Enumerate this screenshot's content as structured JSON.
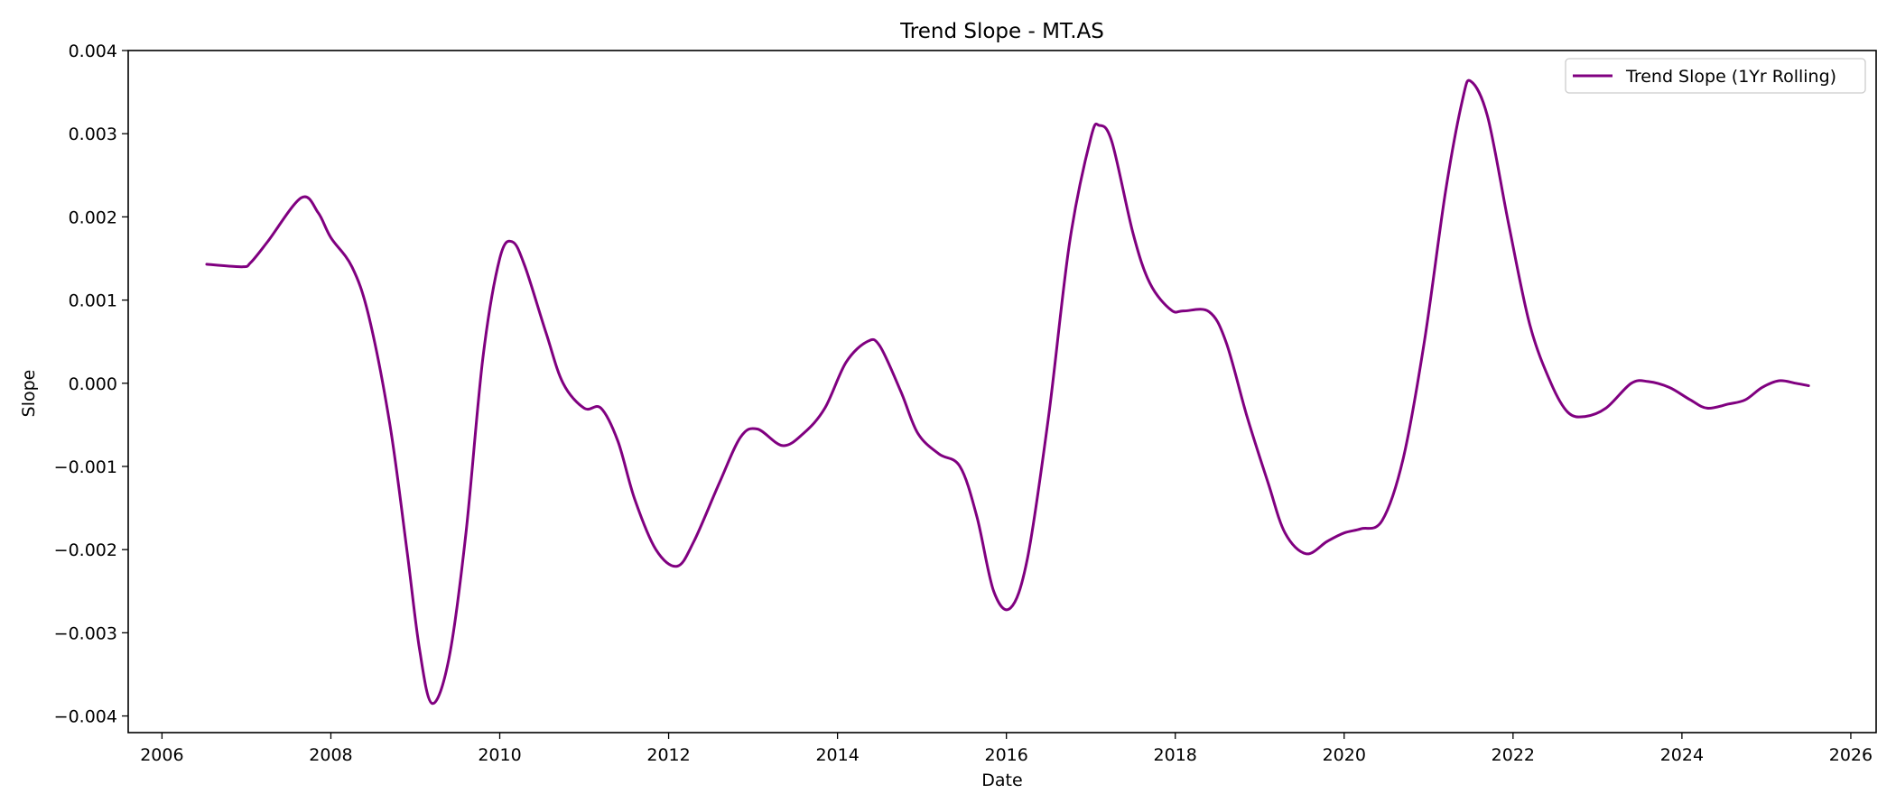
{
  "chart_data": {
    "type": "line",
    "title": "Trend Slope - MT.AS",
    "xlabel": "Date",
    "ylabel": "Slope",
    "xlim": [
      2005.6,
      2026.3
    ],
    "ylim": [
      -0.0042,
      0.004
    ],
    "x_ticks": [
      2006,
      2008,
      2010,
      2012,
      2014,
      2016,
      2018,
      2020,
      2022,
      2024,
      2026
    ],
    "x_tick_labels": [
      "2006",
      "2008",
      "2010",
      "2012",
      "2014",
      "2016",
      "2018",
      "2020",
      "2022",
      "2024",
      "2026"
    ],
    "y_ticks": [
      0.004,
      0.003,
      0.002,
      0.001,
      0.0,
      -0.001,
      -0.002,
      -0.003,
      -0.004
    ],
    "y_tick_labels": [
      "0.004",
      "0.003",
      "0.002",
      "0.001",
      "0.000",
      "−0.001",
      "−0.002",
      "−0.003",
      "−0.004"
    ],
    "grid": false,
    "legend_position": "top-right",
    "series": [
      {
        "name": "Trend Slope (1Yr Rolling)",
        "color": "#800080",
        "points": [
          [
            2006.53,
            0.00143
          ],
          [
            2006.95,
            0.0014
          ],
          [
            2007.05,
            0.00145
          ],
          [
            2007.25,
            0.0017
          ],
          [
            2007.65,
            0.00223
          ],
          [
            2007.85,
            0.00205
          ],
          [
            2008.0,
            0.00175
          ],
          [
            2008.25,
            0.0014
          ],
          [
            2008.45,
            0.0008
          ],
          [
            2008.7,
            -0.0005
          ],
          [
            2008.9,
            -0.002
          ],
          [
            2009.05,
            -0.0032
          ],
          [
            2009.2,
            -0.00385
          ],
          [
            2009.4,
            -0.0033
          ],
          [
            2009.6,
            -0.0018
          ],
          [
            2009.8,
            0.0003
          ],
          [
            2010.0,
            0.0015
          ],
          [
            2010.15,
            0.0017
          ],
          [
            2010.3,
            0.0014
          ],
          [
            2010.55,
            0.0006
          ],
          [
            2010.75,
            0.0
          ],
          [
            2011.0,
            -0.0003
          ],
          [
            2011.2,
            -0.0003
          ],
          [
            2011.4,
            -0.0007
          ],
          [
            2011.6,
            -0.0014
          ],
          [
            2011.85,
            -0.002
          ],
          [
            2012.1,
            -0.0022
          ],
          [
            2012.3,
            -0.0019
          ],
          [
            2012.6,
            -0.0012
          ],
          [
            2012.85,
            -0.00065
          ],
          [
            2013.05,
            -0.00055
          ],
          [
            2013.35,
            -0.00075
          ],
          [
            2013.6,
            -0.0006
          ],
          [
            2013.85,
            -0.0003
          ],
          [
            2014.1,
            0.00025
          ],
          [
            2014.35,
            0.0005
          ],
          [
            2014.5,
            0.00045
          ],
          [
            2014.75,
            -0.0001
          ],
          [
            2014.95,
            -0.0006
          ],
          [
            2015.2,
            -0.00085
          ],
          [
            2015.45,
            -0.001
          ],
          [
            2015.65,
            -0.0016
          ],
          [
            2015.85,
            -0.0025
          ],
          [
            2016.05,
            -0.0027
          ],
          [
            2016.25,
            -0.0021
          ],
          [
            2016.5,
            -0.0004
          ],
          [
            2016.75,
            0.0017
          ],
          [
            2017.0,
            0.00295
          ],
          [
            2017.1,
            0.0031
          ],
          [
            2017.25,
            0.0029
          ],
          [
            2017.5,
            0.0018
          ],
          [
            2017.7,
            0.0012
          ],
          [
            2017.95,
            0.00088
          ],
          [
            2018.1,
            0.00087
          ],
          [
            2018.4,
            0.00086
          ],
          [
            2018.6,
            0.0005
          ],
          [
            2018.85,
            -0.0004
          ],
          [
            2019.1,
            -0.0012
          ],
          [
            2019.3,
            -0.0018
          ],
          [
            2019.55,
            -0.00205
          ],
          [
            2019.8,
            -0.0019
          ],
          [
            2020.0,
            -0.0018
          ],
          [
            2020.2,
            -0.00175
          ],
          [
            2020.45,
            -0.00165
          ],
          [
            2020.7,
            -0.0009
          ],
          [
            2020.95,
            0.0005
          ],
          [
            2021.2,
            0.0023
          ],
          [
            2021.4,
            0.0034
          ],
          [
            2021.5,
            0.00363
          ],
          [
            2021.7,
            0.0032
          ],
          [
            2021.95,
            0.0019
          ],
          [
            2022.2,
            0.0007
          ],
          [
            2022.45,
            0.0
          ],
          [
            2022.65,
            -0.00035
          ],
          [
            2022.85,
            -0.0004
          ],
          [
            2023.1,
            -0.0003
          ],
          [
            2023.4,
            0.0
          ],
          [
            2023.6,
            2e-05
          ],
          [
            2023.85,
            -5e-05
          ],
          [
            2024.1,
            -0.0002
          ],
          [
            2024.3,
            -0.0003
          ],
          [
            2024.55,
            -0.00025
          ],
          [
            2024.75,
            -0.0002
          ],
          [
            2024.95,
            -5e-05
          ],
          [
            2025.15,
            3e-05
          ],
          [
            2025.35,
            0.0
          ],
          [
            2025.5,
            -3e-05
          ]
        ]
      }
    ]
  }
}
